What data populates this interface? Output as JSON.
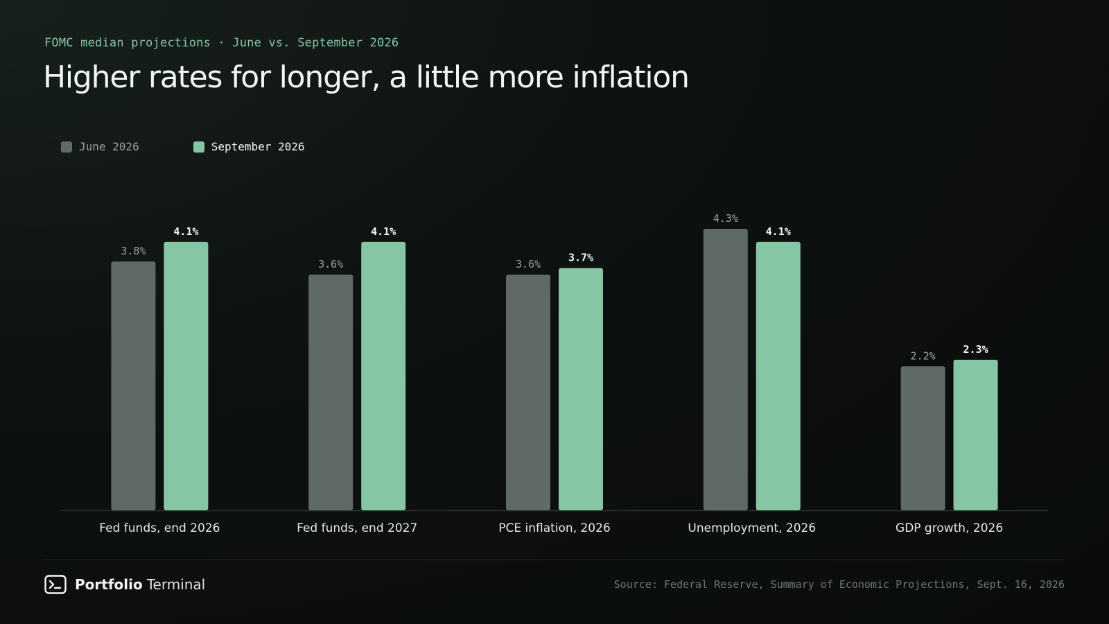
{
  "header": {
    "eyebrow": "FOMC median projections · June vs. September 2026",
    "title": "Higher rates for longer, a little more inflation"
  },
  "colors": {
    "june": "#5f6a64",
    "september": "#86c6a5",
    "baseline": "#2b3330",
    "june_label": "#9aa39f",
    "september_label": "#f3f5f4",
    "category_label": "#e6e9e7"
  },
  "chart_data": {
    "type": "bar",
    "categories": [
      "Fed funds, end 2026",
      "Fed funds, end 2027",
      "PCE inflation, 2026",
      "Unemployment, 2026",
      "GDP growth, 2026"
    ],
    "series": [
      {
        "name": "June 2026",
        "values": [
          3.8,
          3.6,
          3.6,
          4.3,
          2.2
        ],
        "labels": [
          "3.8%",
          "3.6%",
          "3.6%",
          "4.3%",
          "2.2%"
        ]
      },
      {
        "name": "September 2026",
        "values": [
          4.1,
          4.1,
          3.7,
          4.1,
          2.3
        ],
        "labels": [
          "4.1%",
          "4.1%",
          "3.7%",
          "4.1%",
          "2.3%"
        ]
      }
    ],
    "ylim": [
      0,
      4.3
    ],
    "grid": false,
    "legend": "top-left"
  },
  "footer": {
    "brand_strong": "Portfolio",
    "brand_light": "Terminal",
    "logo_icon": "terminal-prompt-icon",
    "source": "Source: Federal Reserve, Summary of Economic Projections, Sept. 16, 2026"
  }
}
